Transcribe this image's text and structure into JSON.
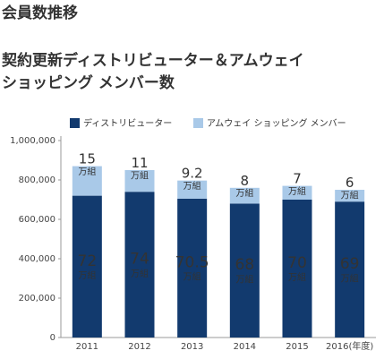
{
  "heading": "会員数推移",
  "chart_data": {
    "type": "stacked_bar",
    "title": [
      "契約更新ディストリビューター＆アムウェイ",
      "ショッピング メンバー数"
    ],
    "categories": [
      "2011",
      "2012",
      "2013",
      "2014",
      "2015",
      "2016(年度)"
    ],
    "series": [
      {
        "name": "ディストリビューター",
        "color": "#123a6e",
        "text_color": "#ffffff",
        "values": [
          720000,
          740000,
          705000,
          680000,
          700000,
          690000
        ],
        "value_labels": [
          "72万組",
          "74万組",
          "70.5万組",
          "68万組",
          "70万組",
          "69万組"
        ]
      },
      {
        "name": "アムウェイ ショッピング メンバー",
        "color": "#a9c9e8",
        "text_color": "#222222",
        "values": [
          150000,
          110000,
          92000,
          80000,
          70000,
          60000
        ],
        "value_labels": [
          "15万組",
          "11万組",
          "9.2万組",
          "8万組",
          "7万組",
          "6万組"
        ]
      }
    ],
    "ylim": [
      0,
      1000000
    ],
    "yticks": [
      0,
      {
        "value": 200000,
        "label": "200,000"
      },
      {
        "value": 400000,
        "label": "400,000"
      },
      {
        "value": 600000,
        "label": "600,000"
      },
      {
        "value": 800000,
        "label": "800,000"
      },
      {
        "value": 1000000,
        "label": "1,000,000"
      }
    ],
    "legend": "top"
  }
}
